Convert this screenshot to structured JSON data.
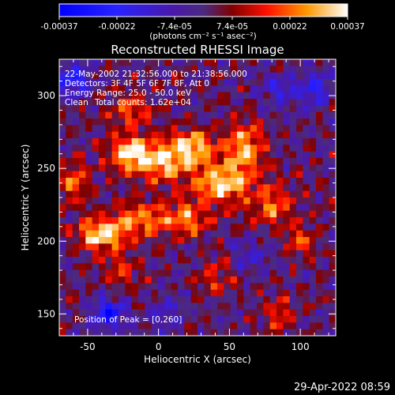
{
  "chart_data": {
    "type": "heatmap",
    "title": "Reconstructed RHESSI Image",
    "xlabel": "Heliocentric X (arcsec)",
    "ylabel": "Heliocentric Y (arcsec)",
    "xlim": [
      -70,
      125
    ],
    "ylim": [
      135,
      325
    ],
    "xticks": [
      -50,
      0,
      50,
      100
    ],
    "yticks": [
      150,
      200,
      250,
      300
    ],
    "colorbar": {
      "ticks": [
        "-0.00037",
        "-0.00022",
        "-7.4e-05",
        "7.4e-05",
        "0.00022",
        "0.00037"
      ],
      "unit_label": "(photons cm⁻² s⁻¹ asec⁻²)",
      "range": [
        -0.00037,
        0.00037
      ]
    },
    "annotations": {
      "time": "22-May-2002 21:32:56.000 to 21:38:56.000",
      "detectors": "Detectors: 3F 4F 5F 6F 7F 8F, Att 0",
      "energy": "Energy Range: 25.0 - 50.0 keV",
      "clean": "Clean",
      "counts": "Total counts: 1.62e+04",
      "peak": "Position of Peak = [0,260]"
    },
    "grid": false,
    "blobs": [
      {
        "x": -20,
        "y": 260,
        "amp": 0.00034,
        "sx": 10,
        "sy": 9
      },
      {
        "x": 5,
        "y": 255,
        "amp": 0.0003,
        "sx": 12,
        "sy": 10
      },
      {
        "x": 25,
        "y": 265,
        "amp": 0.00028,
        "sx": 10,
        "sy": 8
      },
      {
        "x": 45,
        "y": 240,
        "amp": 0.00032,
        "sx": 14,
        "sy": 10
      },
      {
        "x": 60,
        "y": 265,
        "amp": 0.00026,
        "sx": 10,
        "sy": 12
      },
      {
        "x": 80,
        "y": 225,
        "amp": 0.00022,
        "sx": 9,
        "sy": 10
      },
      {
        "x": -40,
        "y": 205,
        "amp": 0.00033,
        "sx": 12,
        "sy": 8
      },
      {
        "x": -10,
        "y": 215,
        "amp": 0.00024,
        "sx": 14,
        "sy": 8
      },
      {
        "x": 20,
        "y": 215,
        "amp": 0.00022,
        "sx": 10,
        "sy": 8
      },
      {
        "x": -60,
        "y": 240,
        "amp": 0.00018,
        "sx": 8,
        "sy": 10
      },
      {
        "x": -20,
        "y": 290,
        "amp": 0.0002,
        "sx": 10,
        "sy": 7
      },
      {
        "x": 100,
        "y": 200,
        "amp": 0.00016,
        "sx": 8,
        "sy": 8
      },
      {
        "x": 85,
        "y": 150,
        "amp": 0.00016,
        "sx": 8,
        "sy": 8
      },
      {
        "x": -25,
        "y": 180,
        "amp": 0.00014,
        "sx": 8,
        "sy": 8
      },
      {
        "x": 40,
        "y": 175,
        "amp": 0.00012,
        "sx": 9,
        "sy": 9
      },
      {
        "x": -35,
        "y": 150,
        "amp": -0.0003,
        "sx": 8,
        "sy": 7
      },
      {
        "x": -60,
        "y": 310,
        "amp": -0.00026,
        "sx": 8,
        "sy": 8
      },
      {
        "x": 110,
        "y": 305,
        "amp": -0.0002,
        "sx": 8,
        "sy": 8
      },
      {
        "x": 85,
        "y": 305,
        "amp": -0.00016,
        "sx": 8,
        "sy": 8
      },
      {
        "x": 5,
        "y": 150,
        "amp": -0.00014,
        "sx": 10,
        "sy": 8
      },
      {
        "x": 65,
        "y": 190,
        "amp": -0.00012,
        "sx": 10,
        "sy": 8
      }
    ]
  },
  "footer": {
    "timestamp": "29-Apr-2022 08:59"
  }
}
